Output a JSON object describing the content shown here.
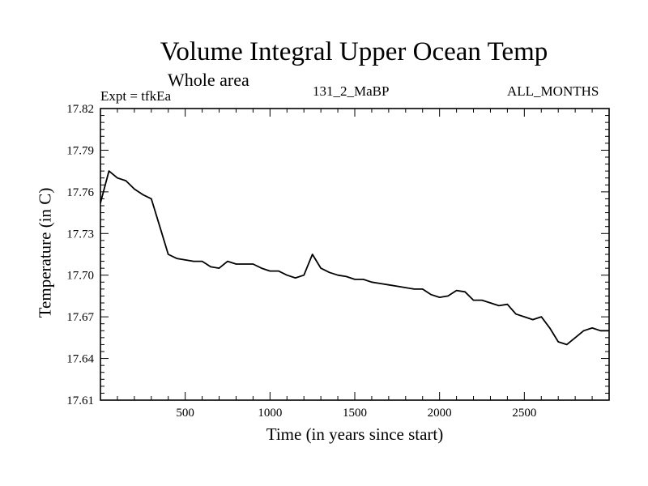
{
  "chart_data": {
    "type": "line",
    "title": "Volume Integral Upper Ocean Temp",
    "subtitle": "Whole area",
    "annotations": {
      "experiment": "Expt = tfkEa",
      "run": "131_2_MaBP",
      "months": "ALL_MONTHS"
    },
    "xlabel": "Time (in years since start)",
    "ylabel": "Temperature (in C)",
    "xlim": [
      0,
      3000
    ],
    "ylim": [
      17.61,
      17.82
    ],
    "xticks": [
      500,
      1000,
      1500,
      2000,
      2500
    ],
    "yticks": [
      "17.61",
      "17.64",
      "17.67",
      "17.70",
      "17.73",
      "17.76",
      "17.79",
      "17.82"
    ],
    "grid": false,
    "line_color": "#000000",
    "series": [
      {
        "x": [
          0,
          50,
          100,
          150,
          200,
          250,
          300,
          350,
          400,
          450,
          500,
          550,
          600,
          650,
          700,
          750,
          800,
          850,
          900,
          950,
          1000,
          1050,
          1100,
          1150,
          1200,
          1250,
          1300,
          1350,
          1400,
          1450,
          1500,
          1550,
          1600,
          1650,
          1700,
          1750,
          1800,
          1850,
          1900,
          1950,
          2000,
          2050,
          2100,
          2150,
          2200,
          2250,
          2300,
          2350,
          2400,
          2450,
          2500,
          2550,
          2600,
          2650,
          2700,
          2750,
          2800,
          2850,
          2900,
          2950,
          3000
        ],
        "y": [
          17.752,
          17.775,
          17.77,
          17.768,
          17.762,
          17.758,
          17.755,
          17.735,
          17.715,
          17.712,
          17.711,
          17.71,
          17.71,
          17.706,
          17.705,
          17.71,
          17.708,
          17.708,
          17.708,
          17.705,
          17.703,
          17.703,
          17.7,
          17.698,
          17.7,
          17.715,
          17.705,
          17.702,
          17.7,
          17.699,
          17.697,
          17.697,
          17.695,
          17.694,
          17.693,
          17.692,
          17.691,
          17.69,
          17.69,
          17.686,
          17.684,
          17.685,
          17.689,
          17.688,
          17.682,
          17.682,
          17.68,
          17.678,
          17.679,
          17.672,
          17.67,
          17.668,
          17.67,
          17.662,
          17.652,
          17.65,
          17.655,
          17.66,
          17.662,
          17.66,
          17.66
        ]
      }
    ]
  }
}
